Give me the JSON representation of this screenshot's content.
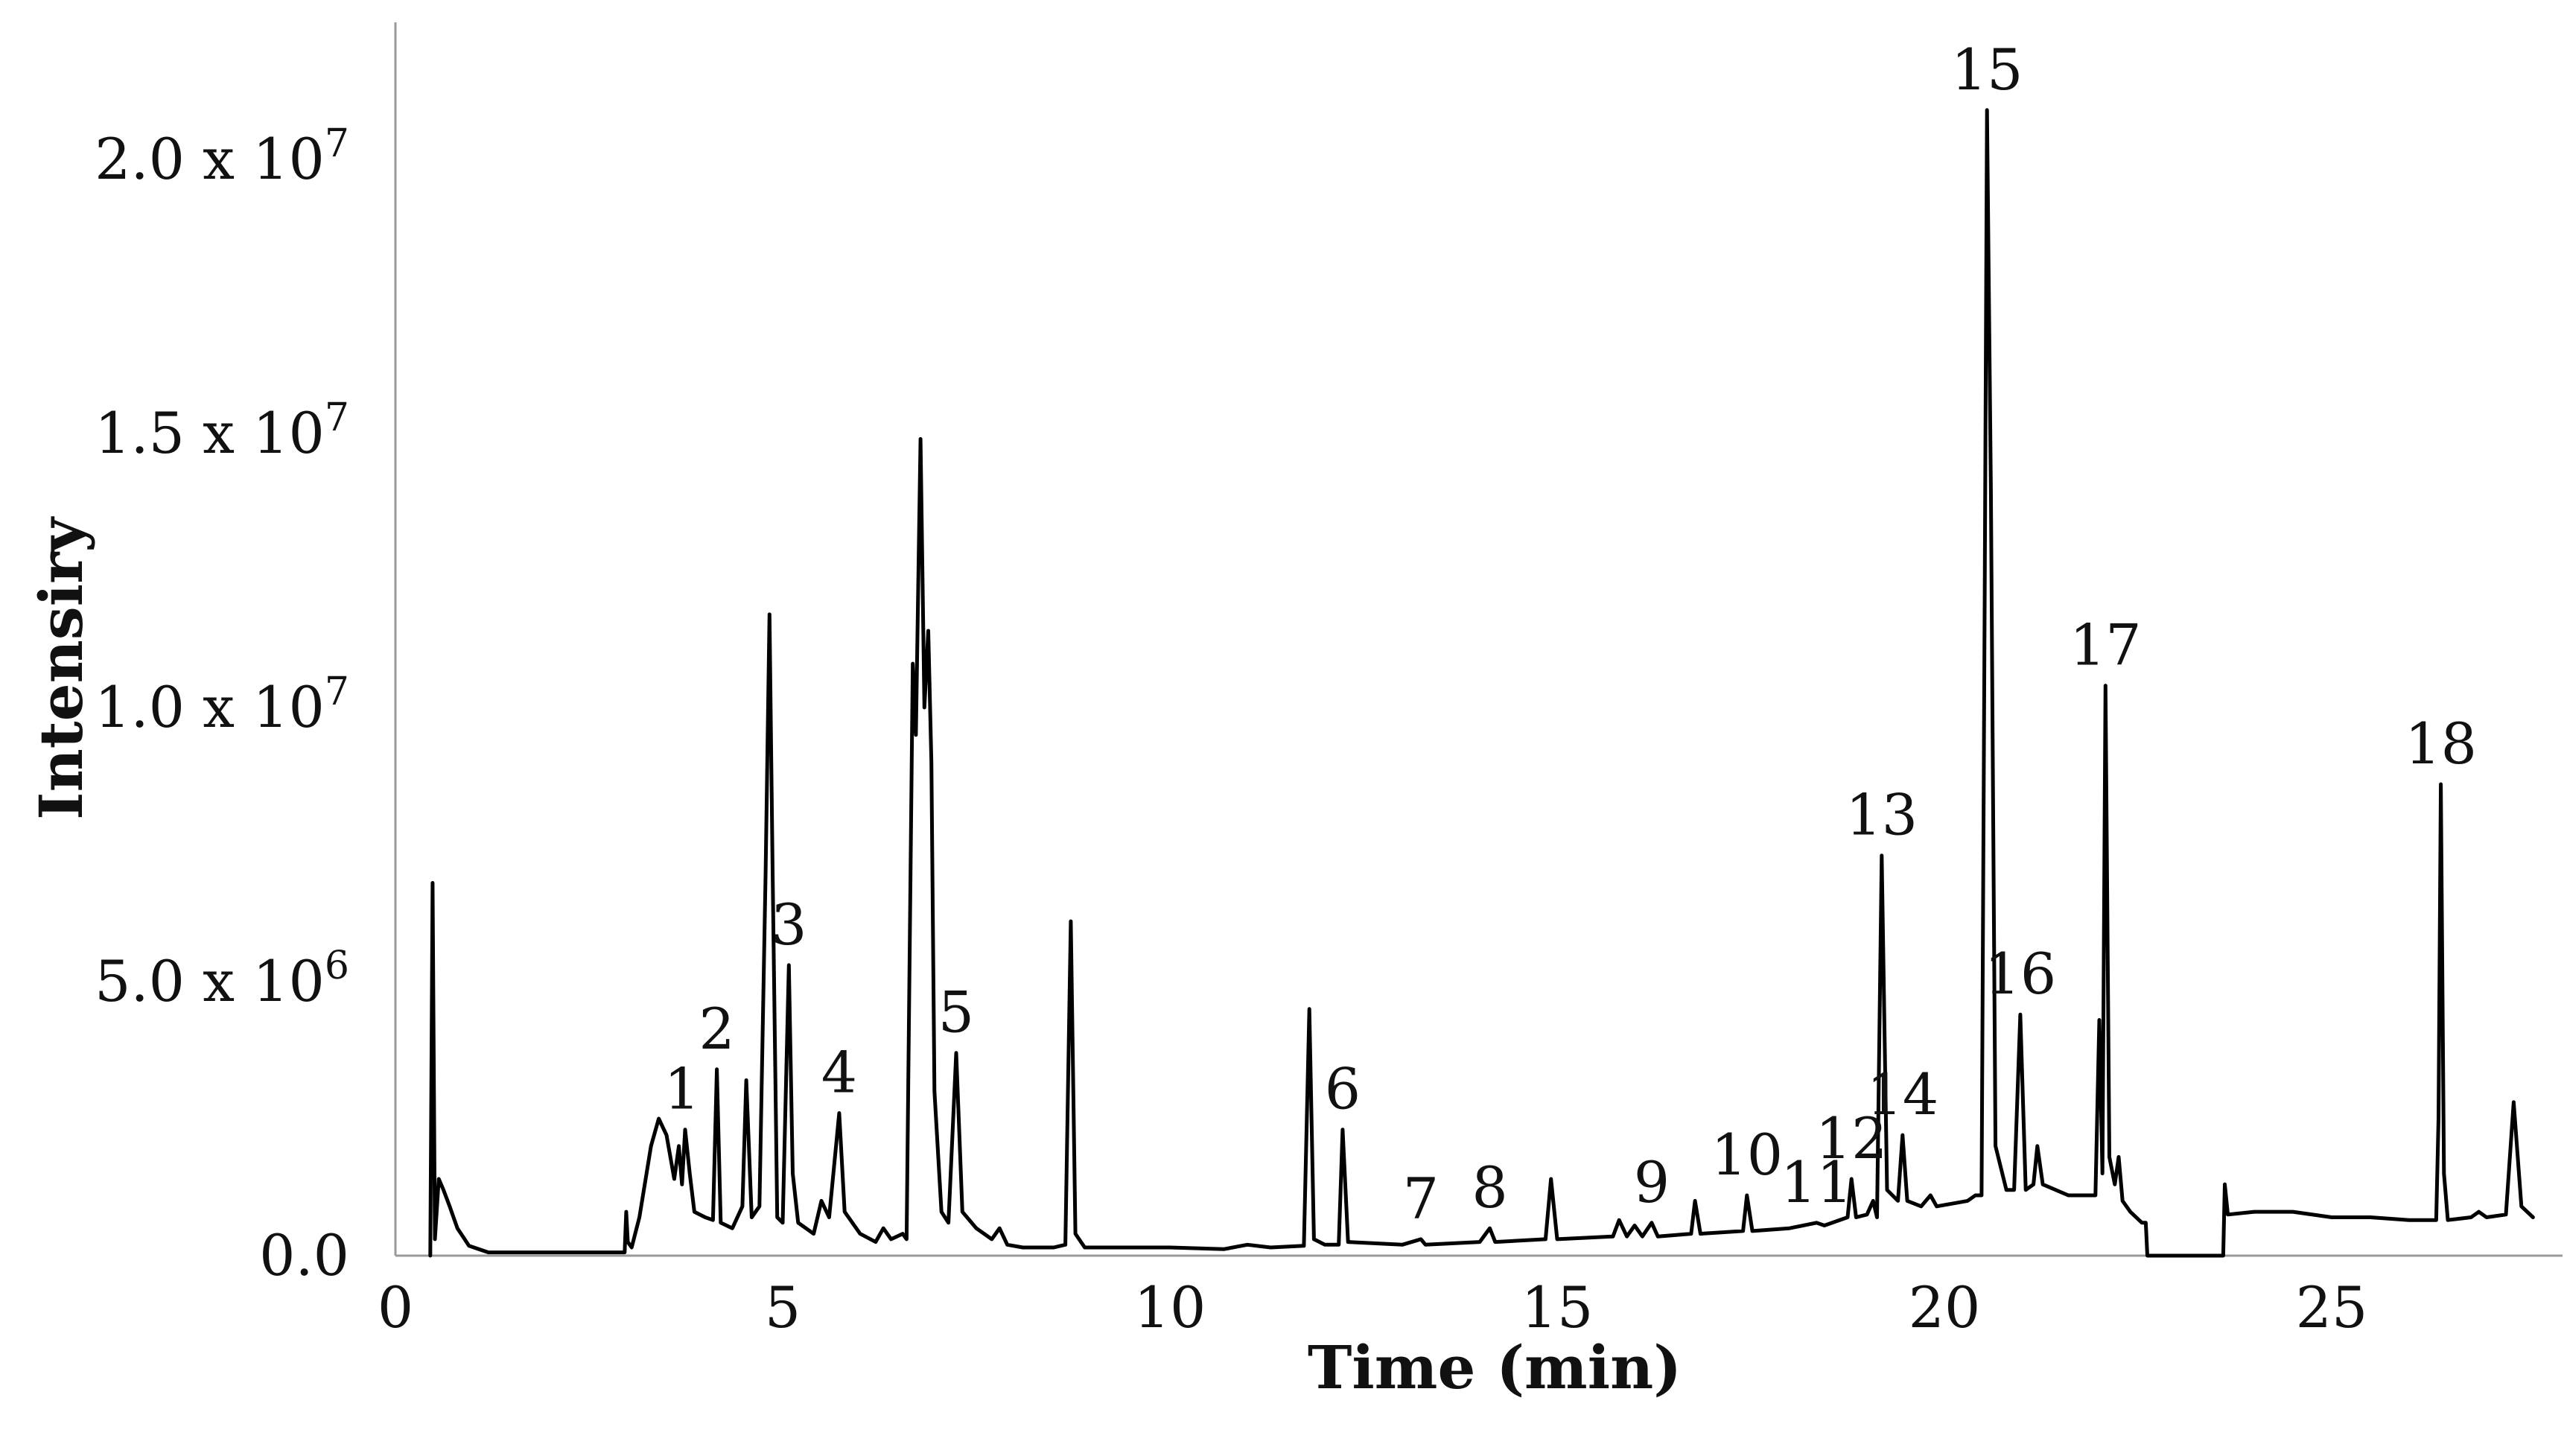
{
  "chart_data": {
    "type": "line",
    "title": "",
    "xlabel": "Time (min)",
    "ylabel": "Intensiry",
    "xlim": [
      0,
      28
    ],
    "ylim": [
      0,
      22500000
    ],
    "x_ticks": [
      {
        "value": 0,
        "label": "0"
      },
      {
        "value": 5,
        "label": "5"
      },
      {
        "value": 10,
        "label": "10"
      },
      {
        "value": 15,
        "label": "15"
      },
      {
        "value": 20,
        "label": "20"
      },
      {
        "value": 25,
        "label": "25"
      }
    ],
    "y_ticks": [
      {
        "value": 0,
        "mantissa": "0.0",
        "exponent": ""
      },
      {
        "value": 5000000,
        "mantissa": "5.0 x 10",
        "exponent": "6"
      },
      {
        "value": 10000000,
        "mantissa": "1.0 x 10",
        "exponent": "7"
      },
      {
        "value": 15000000,
        "mantissa": "1.5 x 10",
        "exponent": "7"
      },
      {
        "value": 20000000,
        "mantissa": "2.0 x 10",
        "exponent": "7"
      }
    ],
    "grid": false,
    "legend": "none",
    "series": [
      {
        "color": "#000000",
        "points": [
          [
            0.45,
            0
          ],
          [
            0.48,
            6800000
          ],
          [
            0.51,
            300000
          ],
          [
            0.56,
            1400000
          ],
          [
            0.62,
            1200000
          ],
          [
            0.7,
            900000
          ],
          [
            0.8,
            500000
          ],
          [
            0.95,
            180000
          ],
          [
            1.2,
            60000
          ],
          [
            2.96,
            60000
          ],
          [
            2.98,
            800000
          ],
          [
            3.0,
            250000
          ],
          [
            3.05,
            150000
          ],
          [
            3.15,
            700000
          ],
          [
            3.3,
            2000000
          ],
          [
            3.4,
            2500000
          ],
          [
            3.5,
            2200000
          ],
          [
            3.6,
            1400000
          ],
          [
            3.66,
            2000000
          ],
          [
            3.7,
            1300000
          ],
          [
            3.74,
            2300000
          ],
          [
            3.8,
            1500000
          ],
          [
            3.86,
            800000
          ],
          [
            4.0,
            700000
          ],
          [
            4.1,
            650000
          ],
          [
            4.15,
            3400000
          ],
          [
            4.2,
            600000
          ],
          [
            4.35,
            500000
          ],
          [
            4.48,
            900000
          ],
          [
            4.53,
            3200000
          ],
          [
            4.6,
            700000
          ],
          [
            4.7,
            900000
          ],
          [
            4.78,
            7000000
          ],
          [
            4.83,
            11700000
          ],
          [
            4.87,
            7000000
          ],
          [
            4.93,
            700000
          ],
          [
            5.0,
            600000
          ],
          [
            5.08,
            5300000
          ],
          [
            5.13,
            1500000
          ],
          [
            5.2,
            600000
          ],
          [
            5.4,
            400000
          ],
          [
            5.5,
            1000000
          ],
          [
            5.6,
            700000
          ],
          [
            5.73,
            2600000
          ],
          [
            5.8,
            800000
          ],
          [
            6.0,
            400000
          ],
          [
            6.2,
            250000
          ],
          [
            6.3,
            500000
          ],
          [
            6.4,
            300000
          ],
          [
            6.55,
            400000
          ],
          [
            6.6,
            300000
          ],
          [
            6.68,
            10800000
          ],
          [
            6.72,
            9500000
          ],
          [
            6.78,
            14900000
          ],
          [
            6.83,
            10000000
          ],
          [
            6.88,
            11400000
          ],
          [
            6.92,
            9000000
          ],
          [
            6.96,
            3000000
          ],
          [
            7.05,
            800000
          ],
          [
            7.14,
            600000
          ],
          [
            7.24,
            3700000
          ],
          [
            7.32,
            800000
          ],
          [
            7.5,
            500000
          ],
          [
            7.7,
            300000
          ],
          [
            7.8,
            500000
          ],
          [
            7.9,
            200000
          ],
          [
            8.1,
            150000
          ],
          [
            8.5,
            150000
          ],
          [
            8.65,
            200000
          ],
          [
            8.72,
            6100000
          ],
          [
            8.78,
            400000
          ],
          [
            8.9,
            150000
          ],
          [
            10.0,
            150000
          ],
          [
            10.7,
            120000
          ],
          [
            11.0,
            200000
          ],
          [
            11.3,
            150000
          ],
          [
            11.73,
            180000
          ],
          [
            11.8,
            4500000
          ],
          [
            11.86,
            300000
          ],
          [
            12.0,
            200000
          ],
          [
            12.18,
            200000
          ],
          [
            12.23,
            2300000
          ],
          [
            12.3,
            250000
          ],
          [
            13.0,
            200000
          ],
          [
            13.24,
            300000
          ],
          [
            13.3,
            200000
          ],
          [
            14.0,
            250000
          ],
          [
            14.13,
            500000
          ],
          [
            14.2,
            250000
          ],
          [
            14.85,
            300000
          ],
          [
            14.92,
            1400000
          ],
          [
            15.0,
            300000
          ],
          [
            15.72,
            350000
          ],
          [
            15.8,
            650000
          ],
          [
            15.9,
            350000
          ],
          [
            16.0,
            550000
          ],
          [
            16.1,
            350000
          ],
          [
            16.22,
            600000
          ],
          [
            16.3,
            350000
          ],
          [
            16.73,
            400000
          ],
          [
            16.78,
            1000000
          ],
          [
            16.85,
            400000
          ],
          [
            17.4,
            450000
          ],
          [
            17.45,
            1100000
          ],
          [
            17.52,
            450000
          ],
          [
            18.0,
            500000
          ],
          [
            18.35,
            600000
          ],
          [
            18.45,
            550000
          ],
          [
            18.75,
            700000
          ],
          [
            18.8,
            1400000
          ],
          [
            18.86,
            700000
          ],
          [
            19.0,
            750000
          ],
          [
            19.08,
            1000000
          ],
          [
            19.13,
            700000
          ],
          [
            19.19,
            7300000
          ],
          [
            19.26,
            1200000
          ],
          [
            19.4,
            1000000
          ],
          [
            19.46,
            2200000
          ],
          [
            19.52,
            1000000
          ],
          [
            19.7,
            900000
          ],
          [
            19.82,
            1100000
          ],
          [
            19.9,
            900000
          ],
          [
            20.3,
            1000000
          ],
          [
            20.4,
            1100000
          ],
          [
            20.48,
            1100000
          ],
          [
            20.52,
            12000000
          ],
          [
            20.55,
            20900000
          ],
          [
            20.6,
            14000000
          ],
          [
            20.66,
            2000000
          ],
          [
            20.8,
            1200000
          ],
          [
            20.9,
            1200000
          ],
          [
            20.98,
            4400000
          ],
          [
            21.05,
            1200000
          ],
          [
            21.15,
            1300000
          ],
          [
            21.2,
            2000000
          ],
          [
            21.27,
            1300000
          ],
          [
            21.6,
            1100000
          ],
          [
            21.95,
            1100000
          ],
          [
            22.0,
            4300000
          ],
          [
            22.04,
            1500000
          ],
          [
            22.08,
            10400000
          ],
          [
            22.13,
            1800000
          ],
          [
            22.2,
            1300000
          ],
          [
            22.25,
            1800000
          ],
          [
            22.3,
            1000000
          ],
          [
            22.4,
            800000
          ],
          [
            22.55,
            600000
          ],
          [
            22.6,
            600000
          ],
          [
            22.62,
            0
          ],
          [
            23.6,
            0
          ],
          [
            23.62,
            1300000
          ],
          [
            23.66,
            750000
          ],
          [
            24.0,
            800000
          ],
          [
            24.5,
            800000
          ],
          [
            25.0,
            700000
          ],
          [
            25.5,
            700000
          ],
          [
            26.0,
            650000
          ],
          [
            26.35,
            650000
          ],
          [
            26.38,
            2500000
          ],
          [
            26.41,
            8600000
          ],
          [
            26.45,
            1500000
          ],
          [
            26.5,
            650000
          ],
          [
            26.8,
            700000
          ],
          [
            26.9,
            800000
          ],
          [
            27.0,
            700000
          ],
          [
            27.25,
            750000
          ],
          [
            27.35,
            2800000
          ],
          [
            27.45,
            900000
          ],
          [
            27.6,
            700000
          ]
        ]
      }
    ],
    "peak_labels": [
      {
        "label": "1",
        "x": 3.7,
        "y": 2300000
      },
      {
        "label": "2",
        "x": 4.15,
        "y": 3400000
      },
      {
        "label": "3",
        "x": 5.08,
        "y": 5300000
      },
      {
        "label": "4",
        "x": 5.73,
        "y": 2600000
      },
      {
        "label": "5",
        "x": 7.24,
        "y": 3700000
      },
      {
        "label": "6",
        "x": 12.23,
        "y": 2300000
      },
      {
        "label": "7",
        "x": 13.24,
        "y": 300000
      },
      {
        "label": "8",
        "x": 14.13,
        "y": 500000
      },
      {
        "label": "9",
        "x": 16.22,
        "y": 600000
      },
      {
        "label": "10",
        "x": 17.45,
        "y": 1100000
      },
      {
        "label": "11",
        "x": 18.35,
        "y": 600000
      },
      {
        "label": "12",
        "x": 18.8,
        "y": 1400000
      },
      {
        "label": "13",
        "x": 19.19,
        "y": 7300000
      },
      {
        "label": "14",
        "x": 19.46,
        "y": 2200000
      },
      {
        "label": "15",
        "x": 20.55,
        "y": 20900000
      },
      {
        "label": "16",
        "x": 20.98,
        "y": 4400000
      },
      {
        "label": "17",
        "x": 22.08,
        "y": 10400000
      },
      {
        "label": "18",
        "x": 26.41,
        "y": 8600000
      }
    ]
  }
}
